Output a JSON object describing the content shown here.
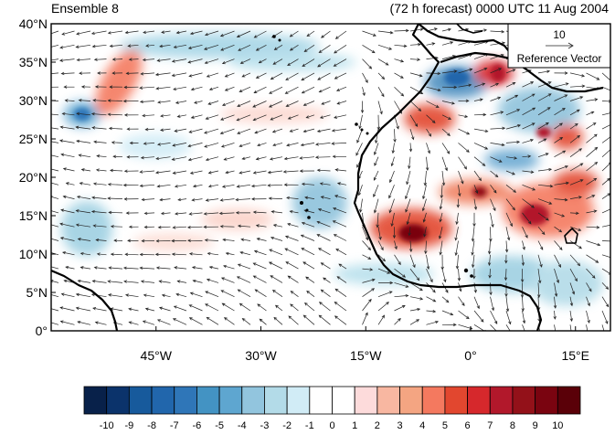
{
  "header": {
    "left_title": "Ensemble 8",
    "right_title": "(72 h forecast) 0000 UTC 11 Aug 2004"
  },
  "map": {
    "lon_range": [
      -60,
      20
    ],
    "lat_range": [
      0,
      40
    ],
    "lat_ticks": [
      {
        "value": 40,
        "label": "40°N"
      },
      {
        "value": 35,
        "label": "35°N"
      },
      {
        "value": 30,
        "label": "30°N"
      },
      {
        "value": 25,
        "label": "25°N"
      },
      {
        "value": 20,
        "label": "20°N"
      },
      {
        "value": 15,
        "label": "15°N"
      },
      {
        "value": 10,
        "label": "10°N"
      },
      {
        "value": 5,
        "label": "5°N"
      },
      {
        "value": 0,
        "label": "0°"
      }
    ],
    "lon_ticks": [
      {
        "value": -45,
        "label": "45°W"
      },
      {
        "value": -30,
        "label": "30°W"
      },
      {
        "value": -15,
        "label": "15°W"
      },
      {
        "value": 0,
        "label": "0°"
      },
      {
        "value": 15,
        "label": "15°E"
      }
    ],
    "reference_vector": {
      "value": "10",
      "label": "Reference Vector"
    }
  },
  "colorbar": {
    "labels": [
      "-10",
      "-9",
      "-8",
      "-7",
      "-6",
      "-5",
      "-4",
      "-3",
      "-2",
      "-1",
      "0",
      "1",
      "2",
      "3",
      "4",
      "5",
      "6",
      "7",
      "8",
      "9",
      "10"
    ],
    "colors": [
      "#08214a",
      "#0b336b",
      "#175a9c",
      "#2166ac",
      "#2f76b8",
      "#4393c3",
      "#5ea6d0",
      "#92c5de",
      "#b3dbe8",
      "#d1ecf6",
      "#ffffff",
      "#ffffff",
      "#fddbdb",
      "#f8b7a1",
      "#f4a582",
      "#f4795f",
      "#e2472f",
      "#d6282c",
      "#b2182b",
      "#931119",
      "#7a0410",
      "#5a0008"
    ]
  }
}
